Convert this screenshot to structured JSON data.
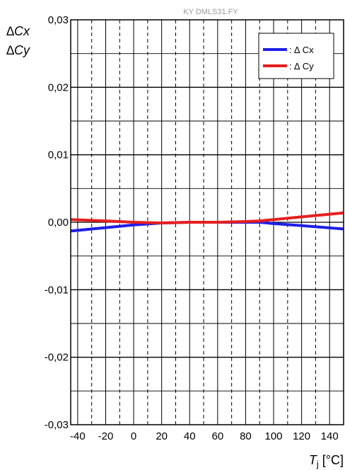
{
  "watermark": "KY DMLS31.FY",
  "chart_data": {
    "type": "line",
    "ylabel_lines": [
      "∆Cx",
      "∆Cy"
    ],
    "xlabel_var": "T",
    "xlabel_sub": "j",
    "xlabel_unit": " [°C]",
    "xlim": [
      -45,
      150
    ],
    "ylim": [
      -0.03,
      0.03
    ],
    "x_ticks": [
      -40,
      -20,
      0,
      20,
      40,
      60,
      80,
      100,
      120,
      140
    ],
    "x_tick_labels": [
      "-40",
      "-20",
      "0",
      "20",
      "40",
      "60",
      "80",
      "100",
      "120",
      "140"
    ],
    "y_ticks": [
      -0.03,
      -0.02,
      -0.01,
      0.0,
      0.01,
      0.02,
      0.03
    ],
    "y_tick_labels": [
      "-0,03",
      "-0,02",
      "-0,01",
      "0,00",
      "0,01",
      "0,02",
      "0,03"
    ],
    "x_minor_step": 10,
    "y_minor_step": 0.005,
    "grid": true,
    "legend_position": "top-right",
    "series": [
      {
        "name": ": ∆ Cx",
        "color": "#1f1fe6",
        "x": [
          -45,
          -20,
          0,
          20,
          40,
          60,
          80,
          90,
          100,
          120,
          150
        ],
        "y": [
          -0.0013,
          -0.0008,
          -0.0004,
          -0.0001,
          0.0,
          0.0,
          0.0,
          0.0,
          -0.0002,
          -0.0005,
          -0.001
        ]
      },
      {
        "name": ": ∆ Cy",
        "color": "#e61f1f",
        "x": [
          -45,
          -20,
          0,
          20,
          40,
          60,
          80,
          90,
          100,
          120,
          150
        ],
        "y": [
          0.0004,
          0.0002,
          0.0,
          -0.0001,
          0.0,
          0.0,
          0.0001,
          0.0002,
          0.0004,
          0.0008,
          0.0014
        ]
      }
    ]
  }
}
